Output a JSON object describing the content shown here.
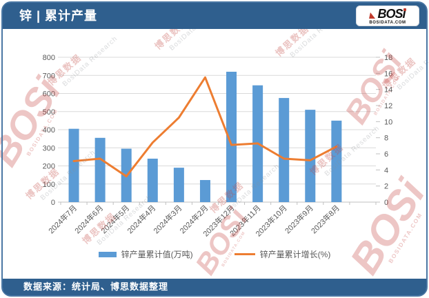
{
  "header": {
    "title": "锌 | 累计产量",
    "logo": {
      "text": "BOSi",
      "subtext": "BOSIDATA.COM"
    }
  },
  "footer": {
    "source": "数据来源：统计局、博思数据整理"
  },
  "watermark": {
    "cn": "博思数据",
    "en": "BosiData Research",
    "logo": "BOSi",
    "logo_sub": "BOSIDATA.COM"
  },
  "colors": {
    "bar": "#5B9BD5",
    "line": "#ED7D31",
    "band": "#2f5f8e",
    "grid": "#d9d9d9",
    "axis": "#bfbfbf",
    "tick_text": "#595959"
  },
  "chart_data": {
    "type": "bar+line combo",
    "categories": [
      "2024年7月",
      "2024年6月",
      "2024年5月",
      "2024年4月",
      "2024年3月",
      "2024年2月",
      "2023年12月",
      "2023年11月",
      "2023年10月",
      "2023年9月",
      "2023年8月"
    ],
    "series": [
      {
        "name": "锌产量累计值(万吨)",
        "type": "bar",
        "axis": "left",
        "color": "#5B9BD5",
        "values": [
          405,
          355,
          295,
          240,
          190,
          122,
          720,
          645,
          575,
          510,
          450
        ]
      },
      {
        "name": "锌产量累计增长(%)",
        "type": "line",
        "axis": "right",
        "color": "#ED7D31",
        "values": [
          5.1,
          5.4,
          3.2,
          7.4,
          10.5,
          15.5,
          7.1,
          7.3,
          5.4,
          5.2,
          6.9
        ]
      }
    ],
    "y_left": {
      "min": 0,
      "max": 800,
      "step": 100
    },
    "y_right": {
      "min": 0,
      "max": 18,
      "step": 2
    },
    "grid": true,
    "legend_position": "bottom",
    "x_label_rotation": -45
  }
}
